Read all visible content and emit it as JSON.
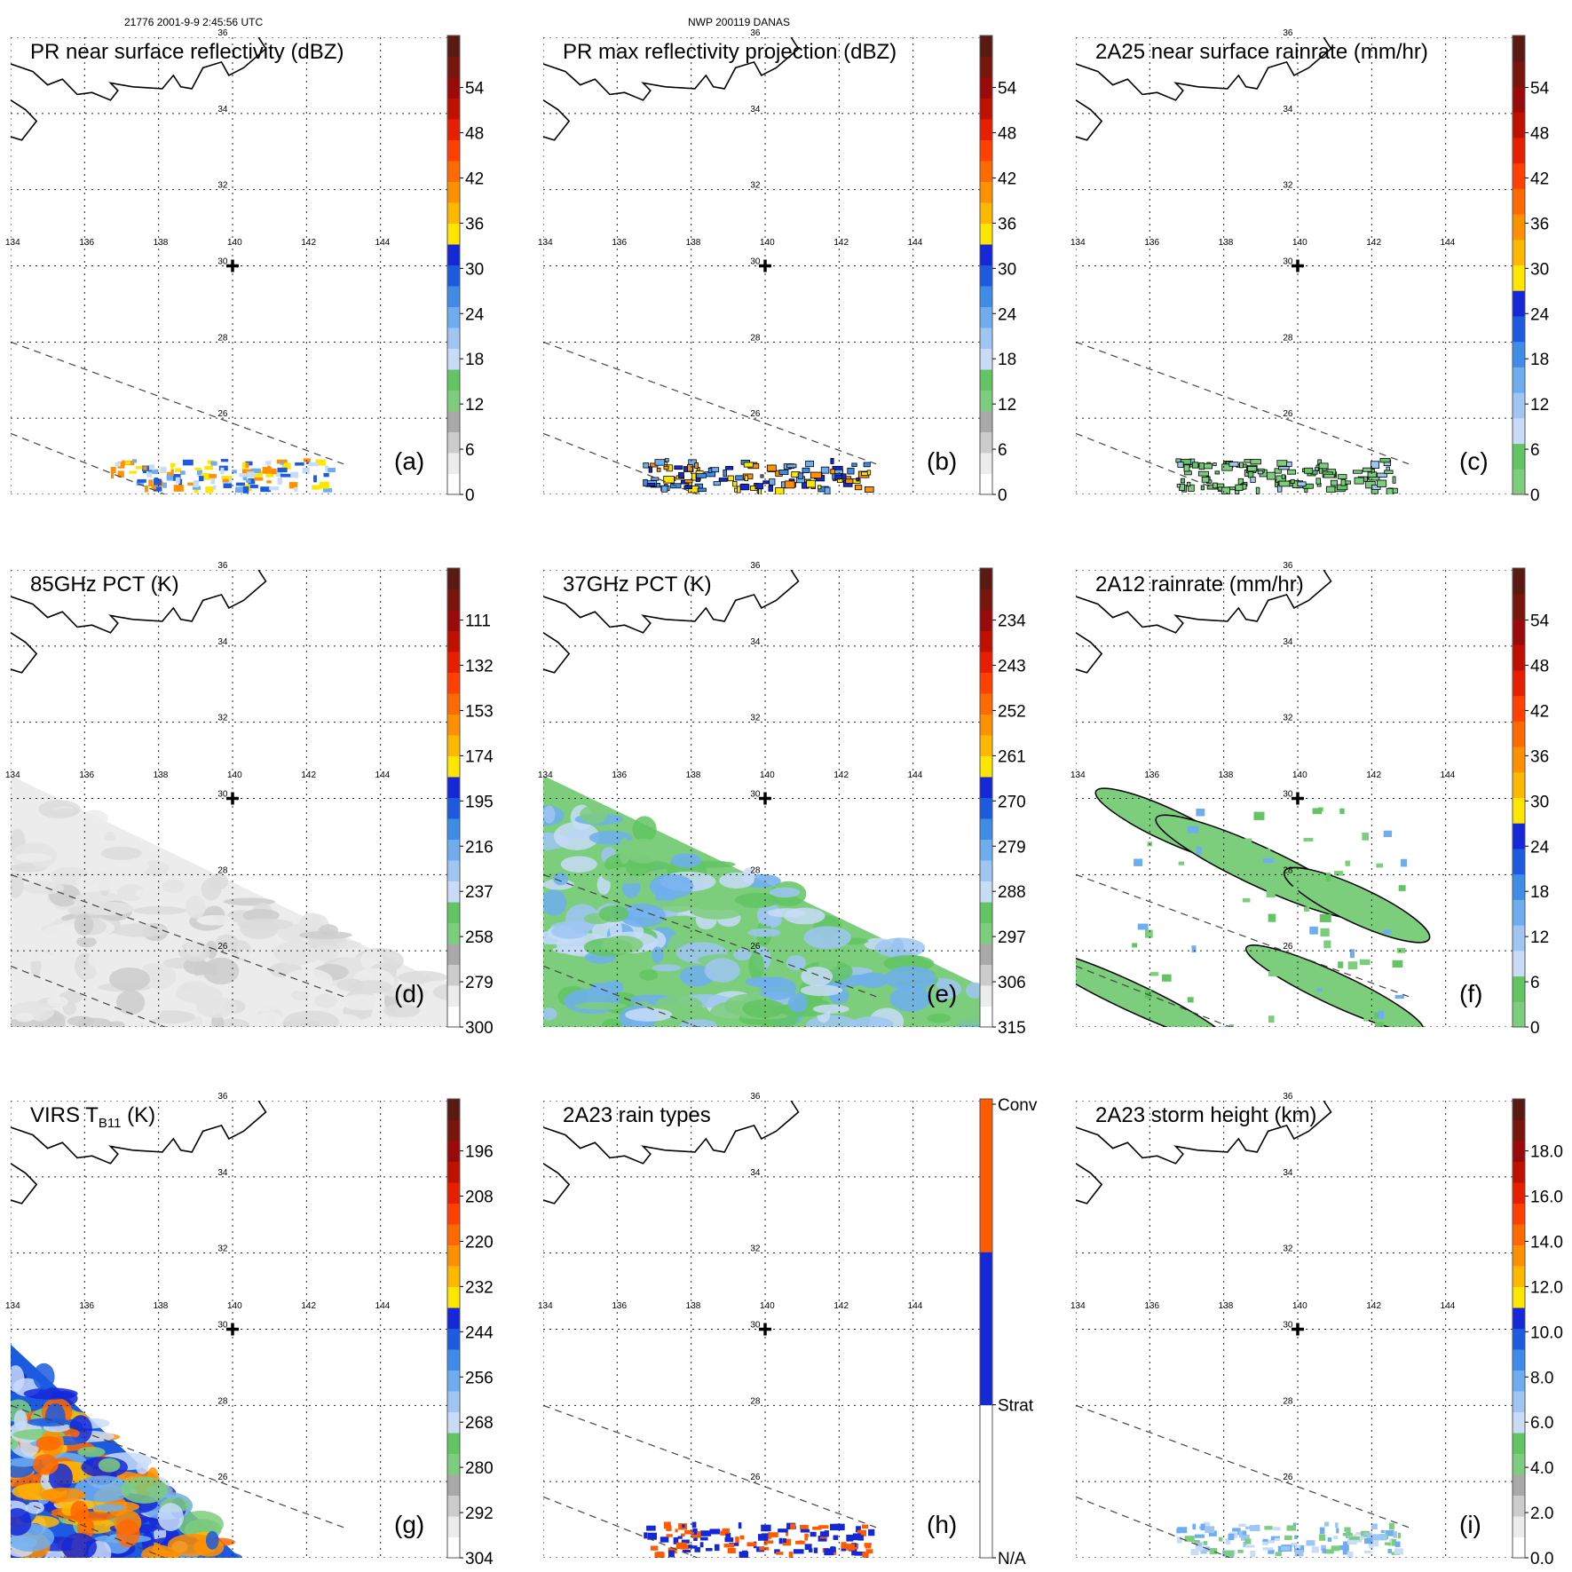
{
  "header": {
    "left": "21776 2001-9-9 2:45:56 UTC",
    "right": "NWP 200119 DANAS"
  },
  "map": {
    "lon_ticks": [
      "134",
      "136",
      "138",
      "140",
      "142",
      "144"
    ],
    "lat_ticks": [
      "36",
      "34",
      "32",
      "30",
      "28",
      "26"
    ],
    "lon_range": [
      134,
      146
    ],
    "lat_range": [
      24,
      36
    ],
    "storm_center": {
      "lon": 140.0,
      "lat": 30.0
    }
  },
  "colorbars": {
    "dbz": {
      "ticks": [
        "0",
        "6",
        "12",
        "18",
        "24",
        "30",
        "36",
        "42",
        "48",
        "54"
      ],
      "colors": [
        "#ffffff",
        "#ececec",
        "#cccccc",
        "#a9a9a9",
        "#7ccd7c",
        "#62c462",
        "#c8dcf8",
        "#9fc5f3",
        "#6eaef0",
        "#3e8ce8",
        "#1c5ae0",
        "#1428d8",
        "#ffe600",
        "#ffb800",
        "#ff9000",
        "#ff6a00",
        "#ff4000",
        "#e81e00",
        "#c01000",
        "#9a0a0a",
        "#78160e",
        "#5a1a12"
      ]
    },
    "rain": {
      "ticks": [
        "0",
        "6",
        "12",
        "18",
        "24",
        "30",
        "36",
        "42",
        "48",
        "54"
      ],
      "colors": [
        "#7ccd7c",
        "#62c462",
        "#c8dcf8",
        "#9fc5f3",
        "#6eaef0",
        "#3e8ce8",
        "#1c5ae0",
        "#1428d8",
        "#ffe600",
        "#ffb800",
        "#ff9000",
        "#ff6a00",
        "#ff4000",
        "#e81e00",
        "#c01000",
        "#9a0a0a",
        "#78160e",
        "#5a1a12"
      ]
    },
    "pct85": {
      "ticks": [
        "300",
        "279",
        "258",
        "237",
        "216",
        "195",
        "174",
        "153",
        "132",
        "111"
      ],
      "colors": [
        "#ffffff",
        "#ececec",
        "#cccccc",
        "#a9a9a9",
        "#7ccd7c",
        "#62c462",
        "#c8dcf8",
        "#9fc5f3",
        "#6eaef0",
        "#3e8ce8",
        "#1c5ae0",
        "#1428d8",
        "#ffe600",
        "#ffb800",
        "#ff9000",
        "#ff6a00",
        "#ff4000",
        "#e81e00",
        "#c01000",
        "#9a0a0a",
        "#78160e",
        "#5a1a12"
      ]
    },
    "pct37": {
      "ticks": [
        "315",
        "306",
        "297",
        "288",
        "279",
        "270",
        "261",
        "252",
        "243",
        "234"
      ],
      "colors": [
        "#ffffff",
        "#ececec",
        "#cccccc",
        "#a9a9a9",
        "#7ccd7c",
        "#62c462",
        "#c8dcf8",
        "#9fc5f3",
        "#6eaef0",
        "#3e8ce8",
        "#1c5ae0",
        "#1428d8",
        "#ffe600",
        "#ffb800",
        "#ff9000",
        "#ff6a00",
        "#ff4000",
        "#e81e00",
        "#c01000",
        "#9a0a0a",
        "#78160e",
        "#5a1a12"
      ]
    },
    "virs": {
      "ticks": [
        "304",
        "292",
        "280",
        "268",
        "256",
        "244",
        "232",
        "220",
        "208",
        "196"
      ],
      "colors": [
        "#ffffff",
        "#ececec",
        "#cccccc",
        "#a9a9a9",
        "#7ccd7c",
        "#62c462",
        "#c8dcf8",
        "#9fc5f3",
        "#6eaef0",
        "#3e8ce8",
        "#1c5ae0",
        "#1428d8",
        "#ffe600",
        "#ffb800",
        "#ff9000",
        "#ff6a00",
        "#ff4000",
        "#e81e00",
        "#c01000",
        "#9a0a0a",
        "#78160e",
        "#5a1a12"
      ]
    },
    "rtype": {
      "ticks": [
        "N/A",
        "Strat",
        "Conv"
      ],
      "colors": [
        "#ffffff",
        "#1428d8",
        "#ff5a00"
      ]
    },
    "height": {
      "ticks": [
        "0.0",
        "2.0",
        "4.0",
        "6.0",
        "8.0",
        "10.0",
        "12.0",
        "14.0",
        "16.0",
        "18.0"
      ],
      "colors": [
        "#ffffff",
        "#ececec",
        "#cccccc",
        "#a9a9a9",
        "#7ccd7c",
        "#62c462",
        "#c8dcf8",
        "#9fc5f3",
        "#6eaef0",
        "#3e8ce8",
        "#1c5ae0",
        "#1428d8",
        "#ffe600",
        "#ffb800",
        "#ff9000",
        "#ff6a00",
        "#ff4000",
        "#e81e00",
        "#c01000",
        "#9a0a0a",
        "#78160e",
        "#5a1a12"
      ]
    }
  },
  "panels": [
    {
      "id": "a",
      "title": "PR near surface reflectivity (dBZ)",
      "label": "(a)",
      "cbar": "dbz",
      "field": "pr",
      "palette": [
        "#ffe600",
        "#ff9000",
        "#6eaef0",
        "#1c5ae0",
        "#c8dcf8"
      ]
    },
    {
      "id": "b",
      "title": "PR max reflectivity projection (dBZ)",
      "label": "(b)",
      "cbar": "dbz",
      "field": "pr",
      "palette": [
        "#ff9000",
        "#6eaef0",
        "#1428d8",
        "#ffe600",
        "#3e8ce8"
      ]
    },
    {
      "id": "c",
      "title": "2A25 near surface rainrate (mm/hr)",
      "label": "(c)",
      "cbar": "rain",
      "field": "pr",
      "palette": [
        "#7ccd7c",
        "#62c462",
        "#9fc5f3",
        "#7ccd7c"
      ]
    },
    {
      "id": "d",
      "title": "85GHz PCT (K)",
      "label": "(d)",
      "cbar": "pct85",
      "field": "tmi",
      "palette": [
        "#ececec",
        "#dcdcdc",
        "#cccccc",
        "#e4e4e4"
      ]
    },
    {
      "id": "e",
      "title": "37GHz PCT (K)",
      "label": "(e)",
      "cbar": "pct37",
      "field": "tmi",
      "palette": [
        "#7ccd7c",
        "#62c462",
        "#9fc5f3",
        "#c8dcf8",
        "#6eaef0"
      ]
    },
    {
      "id": "f",
      "title": "2A12 rainrate (mm/hr)",
      "label": "(f)",
      "cbar": "rain",
      "field": "tmi_rain",
      "palette": [
        "#7ccd7c",
        "#62c462",
        "#6eaef0"
      ]
    },
    {
      "id": "g",
      "title": "VIRS T",
      "title_sub": "B11",
      "title_end": " (K)",
      "label": "(g)",
      "cbar": "virs",
      "field": "virs",
      "palette": [
        "#1c5ae0",
        "#1428d8",
        "#ffb800",
        "#ff9000",
        "#6eaef0",
        "#c8dcf8",
        "#7ccd7c",
        "#ff6a00"
      ]
    },
    {
      "id": "h",
      "title": "2A23 rain types",
      "label": "(h)",
      "cbar": "rtype",
      "field": "pr",
      "palette": [
        "#1428d8",
        "#ff5a00",
        "#1428d8",
        "#ff5a00"
      ]
    },
    {
      "id": "i",
      "title": "2A23 storm height (km)",
      "label": "(i)",
      "cbar": "height",
      "field": "pr",
      "palette": [
        "#c8dcf8",
        "#9fc5f3",
        "#7ccd7c",
        "#6eaef0"
      ]
    }
  ]
}
